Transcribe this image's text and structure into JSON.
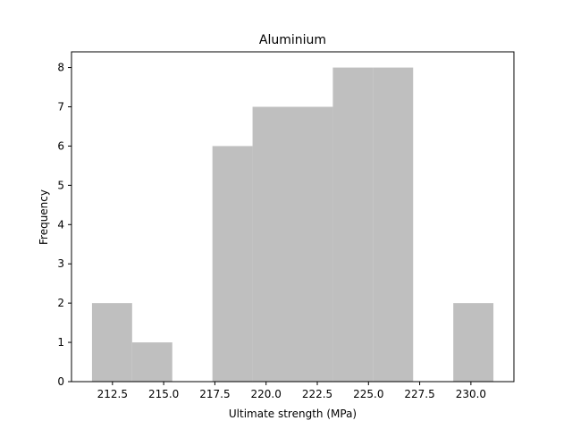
{
  "chart_data": {
    "type": "bar",
    "title": "Aluminium",
    "xlabel": "Ultimate strength (MPa)",
    "ylabel": "Frequency",
    "bins": [
      {
        "x0": 211.5,
        "x1": 213.46,
        "count": 2
      },
      {
        "x0": 213.46,
        "x1": 215.42,
        "count": 1
      },
      {
        "x0": 215.42,
        "x1": 217.38,
        "count": 0
      },
      {
        "x0": 217.38,
        "x1": 219.34,
        "count": 6
      },
      {
        "x0": 219.34,
        "x1": 221.3,
        "count": 7
      },
      {
        "x0": 221.3,
        "x1": 223.26,
        "count": 7
      },
      {
        "x0": 223.26,
        "x1": 225.22,
        "count": 8
      },
      {
        "x0": 225.22,
        "x1": 227.18,
        "count": 8
      },
      {
        "x0": 227.18,
        "x1": 229.14,
        "count": 0
      },
      {
        "x0": 229.14,
        "x1": 231.1,
        "count": 2
      }
    ],
    "xlim": [
      210.5,
      232.1
    ],
    "ylim": [
      0,
      8.4
    ],
    "xticks": [
      212.5,
      215.0,
      217.5,
      220.0,
      222.5,
      225.0,
      227.5,
      230.0
    ],
    "xtick_labels": [
      "212.5",
      "215.0",
      "217.5",
      "220.0",
      "222.5",
      "225.0",
      "227.5",
      "230.0"
    ],
    "yticks": [
      0,
      1,
      2,
      3,
      4,
      5,
      6,
      7,
      8
    ],
    "ytick_labels": [
      "0",
      "1",
      "2",
      "3",
      "4",
      "5",
      "6",
      "7",
      "8"
    ],
    "bar_color": "#bfbfbf",
    "grid": false
  }
}
